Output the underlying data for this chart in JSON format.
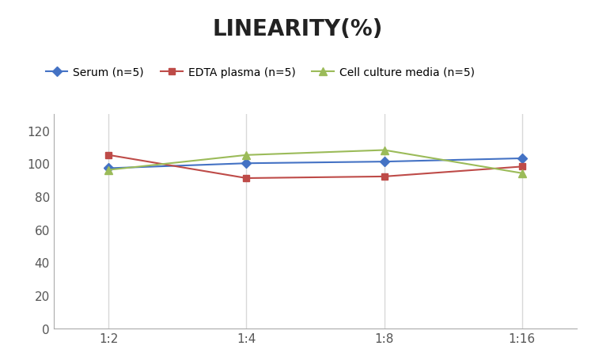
{
  "title": "LINEARITY(%)",
  "x_labels": [
    "1:2",
    "1:4",
    "1:8",
    "1:16"
  ],
  "x_positions": [
    0,
    1,
    2,
    3
  ],
  "series": [
    {
      "label": "Serum (n=5)",
      "color": "#4472C4",
      "marker": "D",
      "markersize": 6,
      "values": [
        97,
        100,
        101,
        103
      ]
    },
    {
      "label": "EDTA plasma (n=5)",
      "color": "#BE4B48",
      "marker": "s",
      "markersize": 6,
      "values": [
        105,
        91,
        92,
        98
      ]
    },
    {
      "label": "Cell culture media (n=5)",
      "color": "#9BBB59",
      "marker": "^",
      "markersize": 7,
      "values": [
        96,
        105,
        108,
        94
      ]
    }
  ],
  "ylim": [
    0,
    130
  ],
  "yticks": [
    0,
    20,
    40,
    60,
    80,
    100,
    120
  ],
  "grid_color": "#D8D8D8",
  "background_color": "#FFFFFF",
  "title_fontsize": 20,
  "title_fontweight": "bold",
  "legend_fontsize": 10,
  "tick_fontsize": 11,
  "xlim": [
    -0.4,
    3.4
  ]
}
